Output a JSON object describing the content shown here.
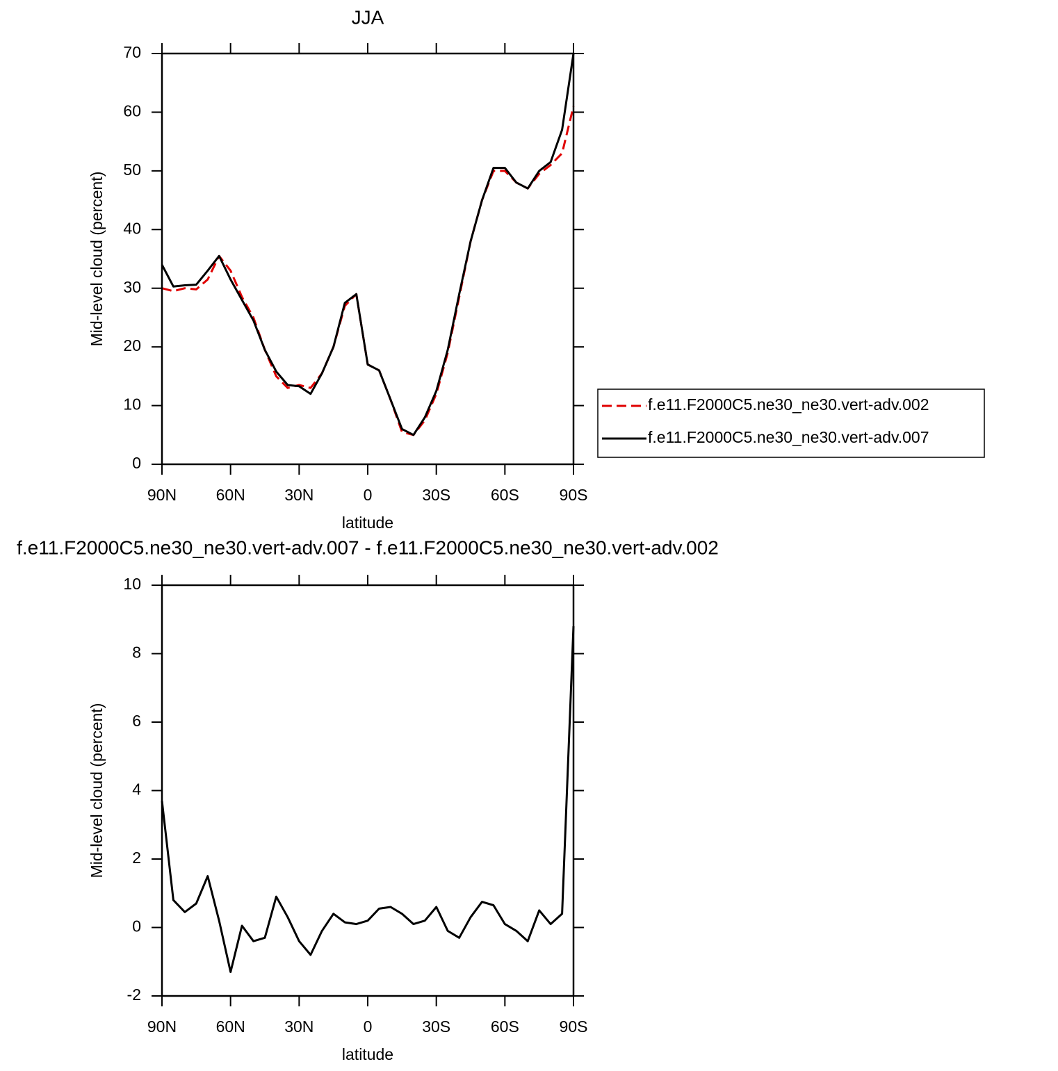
{
  "chart_data": [
    {
      "type": "line",
      "title": "JJA",
      "x_label": "latitude",
      "y_label": "Mid-level cloud (percent)",
      "x": [
        90,
        85,
        80,
        75,
        70,
        65,
        60,
        55,
        50,
        45,
        40,
        35,
        30,
        25,
        20,
        15,
        10,
        5,
        0,
        -5,
        -10,
        -15,
        -20,
        -25,
        -30,
        -35,
        -40,
        -45,
        -50,
        -55,
        -60,
        -65,
        -70,
        -75,
        -80,
        -85,
        -90
      ],
      "series": [
        {
          "name": "f.e11.F2000C5.ne30_ne30.vert-adv.002",
          "color": "#e00000",
          "dashed": true,
          "values": [
            30,
            29.5,
            30,
            29.8,
            31.5,
            35.5,
            33,
            28.5,
            25,
            19.5,
            15,
            13,
            13.5,
            13,
            15.5,
            20,
            27,
            29,
            17,
            16,
            11,
            5.5,
            5,
            7.5,
            12,
            19,
            28.5,
            38,
            45,
            50,
            50,
            48,
            47,
            49.5,
            51,
            53,
            61
          ]
        },
        {
          "name": "f.e11.F2000C5.ne30_ne30.vert-adv.007",
          "color": "#000000",
          "dashed": false,
          "values": [
            34,
            30.3,
            30.5,
            30.6,
            33,
            35.5,
            31.5,
            28,
            24.5,
            19.5,
            15.8,
            13.5,
            13.3,
            12,
            15.5,
            20,
            27.5,
            29,
            17,
            16,
            11,
            6,
            5,
            8,
            12.5,
            19.5,
            29,
            38,
            45,
            50.5,
            50.5,
            48,
            47,
            50,
            51.5,
            57,
            70
          ]
        }
      ],
      "xlim": [
        90,
        -90
      ],
      "xticks": [
        {
          "value": 90,
          "label": "90N"
        },
        {
          "value": 60,
          "label": "60N"
        },
        {
          "value": 30,
          "label": "30N"
        },
        0,
        {
          "value": -30,
          "label": "30S"
        },
        {
          "value": -60,
          "label": "60S"
        },
        {
          "value": -90,
          "label": "90S"
        }
      ],
      "ylim": [
        0,
        70
      ],
      "yticks": [
        0,
        10,
        20,
        30,
        40,
        50,
        60,
        70
      ],
      "legend": "right"
    },
    {
      "type": "line",
      "title": "f.e11.F2000C5.ne30_ne30.vert-adv.007 - f.e11.F2000C5.ne30_ne30.vert-adv.002",
      "x_label": "latitude",
      "y_label": "Mid-level cloud (percent)",
      "x": [
        90,
        85,
        80,
        75,
        70,
        65,
        60,
        55,
        50,
        45,
        40,
        35,
        30,
        25,
        20,
        15,
        10,
        5,
        0,
        -5,
        -10,
        -15,
        -20,
        -25,
        -30,
        -35,
        -40,
        -45,
        -50,
        -55,
        -60,
        -65,
        -70,
        -75,
        -80,
        -85,
        -90
      ],
      "series": [
        {
          "color": "#000000",
          "dashed": false,
          "values": [
            3.7,
            0.8,
            0.45,
            0.7,
            1.5,
            0.2,
            -1.3,
            0.05,
            -0.4,
            -0.3,
            0.9,
            0.3,
            -0.4,
            -0.8,
            -0.1,
            0.4,
            0.15,
            0.1,
            0.2,
            0.55,
            0.6,
            0.4,
            0.1,
            0.2,
            0.6,
            -0.1,
            -0.3,
            0.3,
            0.75,
            0.65,
            0.1,
            -0.1,
            -0.4,
            0.5,
            0.1,
            0.4,
            8.8
          ]
        }
      ],
      "xlim": [
        90,
        -90
      ],
      "xticks": [
        {
          "value": 90,
          "label": "90N"
        },
        {
          "value": 60,
          "label": "60N"
        },
        {
          "value": 30,
          "label": "30N"
        },
        0,
        {
          "value": -30,
          "label": "30S"
        },
        {
          "value": -60,
          "label": "60S"
        },
        {
          "value": -90,
          "label": "90S"
        }
      ],
      "ylim": [
        -2,
        10
      ],
      "yticks": [
        -2,
        0,
        2,
        4,
        6,
        8,
        10
      ]
    }
  ]
}
